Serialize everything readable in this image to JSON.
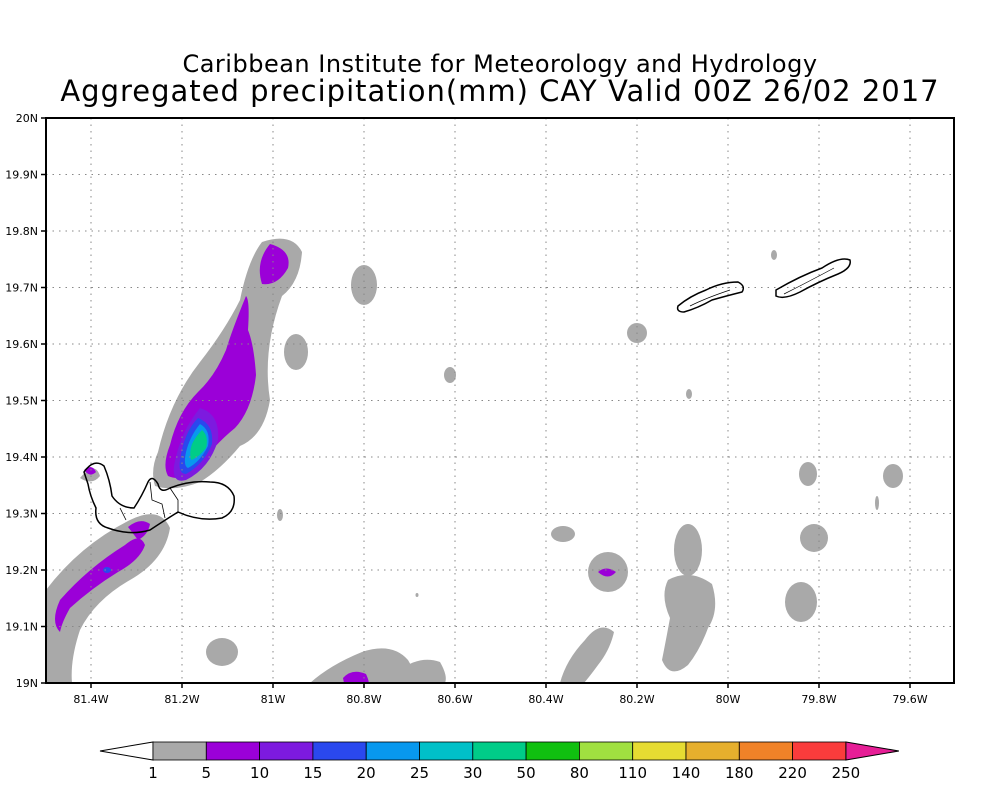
{
  "title": {
    "line1": "Caribbean Institute for Meteorology and Hydrology",
    "line2": "Aggregated precipitation(mm) CAY Valid 00Z 26/02 2017"
  },
  "axes": {
    "y_ticks": [
      "20N",
      "19.9N",
      "19.8N",
      "19.7N",
      "19.6N",
      "19.5N",
      "19.4N",
      "19.3N",
      "19.2N",
      "19.1N",
      "19N"
    ],
    "x_ticks": [
      "81.4W",
      "81.2W",
      "81W",
      "80.8W",
      "80.6W",
      "80.4W",
      "80.2W",
      "80W",
      "79.8W",
      "79.6W"
    ]
  },
  "colorbar": {
    "labels": [
      "1",
      "5",
      "10",
      "15",
      "20",
      "25",
      "30",
      "50",
      "80",
      "110",
      "140",
      "180",
      "220",
      "250"
    ],
    "colors": [
      "#a9a9a9",
      "#9b00d8",
      "#7d1adf",
      "#2a48ee",
      "#0898ee",
      "#00c0c8",
      "#00cc88",
      "#10c010",
      "#a0e040",
      "#e6dc32",
      "#e6af2d",
      "#f08228",
      "#fa3c3c",
      "#e61e96"
    ]
  },
  "colors": {
    "light_precip": "#a9a9a9",
    "moderate_precip": "#9b00d8",
    "heavy_precip": "#2a48ee",
    "very_heavy_precip": "#00cc88"
  }
}
